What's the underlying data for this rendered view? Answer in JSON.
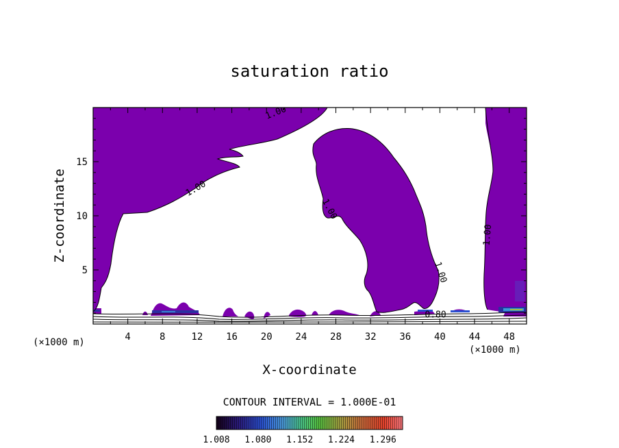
{
  "chart_data": {
    "type": "contour",
    "title": "saturation ratio",
    "xlabel": "X-coordinate",
    "ylabel": "Z-coordinate",
    "x_unit": "(×1000 m)",
    "y_unit": "(×1000 m)",
    "xlim": [
      0,
      50
    ],
    "ylim": [
      0,
      20
    ],
    "x_ticks": [
      4,
      8,
      12,
      16,
      20,
      24,
      28,
      32,
      36,
      40,
      44,
      48
    ],
    "y_ticks": [
      5,
      10,
      15
    ],
    "contour_interval_text": "CONTOUR INTERVAL = 1.000E-01",
    "fill_color": "#7b00ad",
    "contour_labels": [
      {
        "text": "1.00",
        "x": 21.2,
        "y": 19.3,
        "angle": -22
      },
      {
        "text": "1.00",
        "x": 12.0,
        "y": 12.3,
        "angle": -30
      },
      {
        "text": "1.00",
        "x": 27.0,
        "y": 10.5,
        "angle": 62
      },
      {
        "text": "1.00",
        "x": 39.8,
        "y": 4.7,
        "angle": 72
      },
      {
        "text": "1.00",
        "x": 45.8,
        "y": 8.2,
        "angle": -85
      },
      {
        "text": "0.80",
        "x": 39.5,
        "y": 0.6,
        "angle": 0
      }
    ],
    "colorbar": {
      "tick_labels": [
        "1.008",
        "1.080",
        "1.152",
        "1.224",
        "1.296"
      ],
      "range": [
        1.008,
        1.33
      ]
    }
  }
}
